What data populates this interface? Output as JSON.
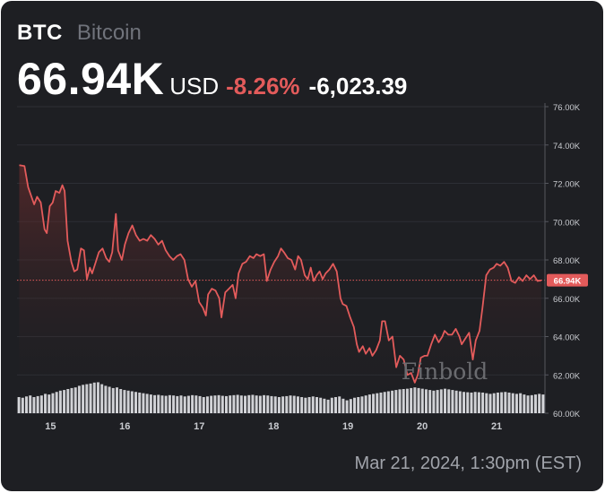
{
  "header": {
    "symbol": "BTC",
    "name": "Bitcoin",
    "price": "66.94K",
    "currency": "USD",
    "change_percent": "-8.26%",
    "change_absolute": "-6,023.39"
  },
  "footer": {
    "timestamp": "Mar 21, 2024, 1:30pm (EST)"
  },
  "watermark": "Finbold",
  "colors": {
    "background": "#1e1f23",
    "line": "#e35b5b",
    "negative": "#e35b5b",
    "volume": "#d5d6da",
    "grid": "#2d2f35",
    "axis_text": "#c9cbd0",
    "price_tag": "#e35b5b"
  },
  "chart_data": {
    "type": "line",
    "x_label": "",
    "y_label": "",
    "ylim": [
      60000,
      76000
    ],
    "y_ticks": [
      "76.00K",
      "74.00K",
      "72.00K",
      "70.00K",
      "68.00K",
      "66.00K",
      "64.00K",
      "62.00K",
      "60.00K"
    ],
    "y_tick_values": [
      76000,
      74000,
      72000,
      70000,
      68000,
      66000,
      64000,
      62000,
      60000
    ],
    "x_ticks": [
      "15",
      "16",
      "17",
      "18",
      "19",
      "20",
      "21"
    ],
    "x_tick_values": [
      15,
      16,
      17,
      18,
      19,
      20,
      21
    ],
    "xlim": [
      14.55,
      21.65
    ],
    "current_price_label": "66.94K",
    "current_price_value": 66940,
    "grid": "horizontal",
    "area_fill": true,
    "series": [
      {
        "values": [
          [
            14.58,
            72950
          ],
          [
            14.65,
            72900
          ],
          [
            14.7,
            71800
          ],
          [
            14.78,
            70900
          ],
          [
            14.82,
            71300
          ],
          [
            14.87,
            71000
          ],
          [
            14.92,
            69600
          ],
          [
            14.95,
            69400
          ],
          [
            14.99,
            70800
          ],
          [
            15.03,
            71000
          ],
          [
            15.07,
            71600
          ],
          [
            15.12,
            71500
          ],
          [
            15.16,
            71900
          ],
          [
            15.19,
            71600
          ],
          [
            15.23,
            69000
          ],
          [
            15.28,
            67900
          ],
          [
            15.32,
            67400
          ],
          [
            15.36,
            67500
          ],
          [
            15.41,
            68600
          ],
          [
            15.45,
            68500
          ],
          [
            15.49,
            67000
          ],
          [
            15.53,
            67600
          ],
          [
            15.56,
            67300
          ],
          [
            15.61,
            67900
          ],
          [
            15.65,
            68400
          ],
          [
            15.7,
            68600
          ],
          [
            15.75,
            68100
          ],
          [
            15.79,
            67900
          ],
          [
            15.83,
            68400
          ],
          [
            15.88,
            70400
          ],
          [
            15.91,
            68500
          ],
          [
            15.96,
            68000
          ],
          [
            16.0,
            68800
          ],
          [
            16.05,
            69400
          ],
          [
            16.1,
            69800
          ],
          [
            16.15,
            69300
          ],
          [
            16.2,
            69000
          ],
          [
            16.25,
            69100
          ],
          [
            16.3,
            69000
          ],
          [
            16.35,
            69300
          ],
          [
            16.4,
            69100
          ],
          [
            16.45,
            68800
          ],
          [
            16.5,
            69000
          ],
          [
            16.55,
            68500
          ],
          [
            16.6,
            68200
          ],
          [
            16.65,
            68000
          ],
          [
            16.7,
            68200
          ],
          [
            16.75,
            68300
          ],
          [
            16.8,
            68000
          ],
          [
            16.85,
            67000
          ],
          [
            16.9,
            66600
          ],
          [
            16.95,
            66900
          ],
          [
            17.0,
            65800
          ],
          [
            17.05,
            65500
          ],
          [
            17.09,
            65100
          ],
          [
            17.12,
            66200
          ],
          [
            17.17,
            66500
          ],
          [
            17.22,
            66400
          ],
          [
            17.27,
            66000
          ],
          [
            17.3,
            65000
          ],
          [
            17.35,
            66300
          ],
          [
            17.4,
            66500
          ],
          [
            17.45,
            66700
          ],
          [
            17.49,
            66000
          ],
          [
            17.53,
            67300
          ],
          [
            17.58,
            67800
          ],
          [
            17.63,
            67900
          ],
          [
            17.68,
            68200
          ],
          [
            17.73,
            68100
          ],
          [
            17.77,
            68300
          ],
          [
            17.82,
            68200
          ],
          [
            17.87,
            68300
          ],
          [
            17.91,
            66900
          ],
          [
            17.96,
            67500
          ],
          [
            18.01,
            67900
          ],
          [
            18.06,
            68200
          ],
          [
            18.1,
            68600
          ],
          [
            18.14,
            68400
          ],
          [
            18.19,
            68100
          ],
          [
            18.24,
            68000
          ],
          [
            18.29,
            67500
          ],
          [
            18.33,
            68200
          ],
          [
            18.37,
            68000
          ],
          [
            18.42,
            67200
          ],
          [
            18.46,
            67000
          ],
          [
            18.5,
            67600
          ],
          [
            18.54,
            66900
          ],
          [
            18.58,
            67200
          ],
          [
            18.62,
            67400
          ],
          [
            18.66,
            67000
          ],
          [
            18.7,
            67300
          ],
          [
            18.75,
            67500
          ],
          [
            18.8,
            67800
          ],
          [
            18.85,
            67400
          ],
          [
            18.9,
            66000
          ],
          [
            18.93,
            65700
          ],
          [
            18.98,
            65600
          ],
          [
            19.03,
            65000
          ],
          [
            19.08,
            64500
          ],
          [
            19.12,
            63600
          ],
          [
            19.15,
            63200
          ],
          [
            19.2,
            63500
          ],
          [
            19.24,
            63100
          ],
          [
            19.29,
            63400
          ],
          [
            19.33,
            63000
          ],
          [
            19.38,
            63300
          ],
          [
            19.43,
            63800
          ],
          [
            19.46,
            64800
          ],
          [
            19.5,
            64800
          ],
          [
            19.55,
            63800
          ],
          [
            19.6,
            64000
          ],
          [
            19.65,
            62400
          ],
          [
            19.7,
            63000
          ],
          [
            19.75,
            62800
          ],
          [
            19.8,
            62000
          ],
          [
            19.85,
            62100
          ],
          [
            19.9,
            61600
          ],
          [
            19.94,
            62000
          ],
          [
            19.98,
            62900
          ],
          [
            20.03,
            63000
          ],
          [
            20.07,
            63000
          ],
          [
            20.12,
            63600
          ],
          [
            20.17,
            64100
          ],
          [
            20.22,
            63700
          ],
          [
            20.27,
            64000
          ],
          [
            20.3,
            64300
          ],
          [
            20.35,
            64100
          ],
          [
            20.4,
            64100
          ],
          [
            20.45,
            64400
          ],
          [
            20.5,
            64000
          ],
          [
            20.53,
            63600
          ],
          [
            20.58,
            63900
          ],
          [
            20.63,
            64200
          ],
          [
            20.68,
            62800
          ],
          [
            20.72,
            63800
          ],
          [
            20.77,
            64300
          ],
          [
            20.81,
            65500
          ],
          [
            20.86,
            67200
          ],
          [
            20.91,
            67500
          ],
          [
            20.96,
            67600
          ],
          [
            21.0,
            67800
          ],
          [
            21.05,
            67700
          ],
          [
            21.1,
            67900
          ],
          [
            21.15,
            67600
          ],
          [
            21.2,
            66900
          ],
          [
            21.25,
            66800
          ],
          [
            21.3,
            67100
          ],
          [
            21.35,
            66900
          ],
          [
            21.4,
            67200
          ],
          [
            21.45,
            67000
          ],
          [
            21.5,
            67200
          ],
          [
            21.55,
            66900
          ],
          [
            21.6,
            66940
          ]
        ]
      }
    ],
    "volume": [
      0.5,
      0.48,
      0.52,
      0.55,
      0.5,
      0.53,
      0.55,
      0.6,
      0.58,
      0.62,
      0.66,
      0.7,
      0.72,
      0.75,
      0.78,
      0.8,
      0.85,
      0.88,
      0.9,
      0.92,
      0.95,
      0.96,
      0.9,
      0.85,
      0.82,
      0.78,
      0.8,
      0.75,
      0.72,
      0.7,
      0.68,
      0.66,
      0.64,
      0.62,
      0.6,
      0.58,
      0.56,
      0.57,
      0.55,
      0.54,
      0.56,
      0.55,
      0.53,
      0.55,
      0.52,
      0.54,
      0.56,
      0.55,
      0.53,
      0.5,
      0.52,
      0.54,
      0.55,
      0.56,
      0.54,
      0.53,
      0.55,
      0.56,
      0.57,
      0.55,
      0.54,
      0.56,
      0.57,
      0.55,
      0.54,
      0.56,
      0.55,
      0.53,
      0.52,
      0.5,
      0.52,
      0.53,
      0.55,
      0.54,
      0.52,
      0.5,
      0.48,
      0.5,
      0.52,
      0.5,
      0.48,
      0.45,
      0.42,
      0.48,
      0.5,
      0.52,
      0.45,
      0.4,
      0.44,
      0.48,
      0.5,
      0.52,
      0.55,
      0.58,
      0.6,
      0.62,
      0.64,
      0.66,
      0.68,
      0.7,
      0.72,
      0.74,
      0.75,
      0.76,
      0.78,
      0.8,
      0.78,
      0.76,
      0.74,
      0.72,
      0.7,
      0.72,
      0.74,
      0.76,
      0.74,
      0.72,
      0.7,
      0.68,
      0.66,
      0.65,
      0.64,
      0.66,
      0.65,
      0.64,
      0.62,
      0.6,
      0.62,
      0.64,
      0.65,
      0.66,
      0.64,
      0.62,
      0.6,
      0.62,
      0.58,
      0.55,
      0.56,
      0.58,
      0.6,
      0.58
    ]
  }
}
